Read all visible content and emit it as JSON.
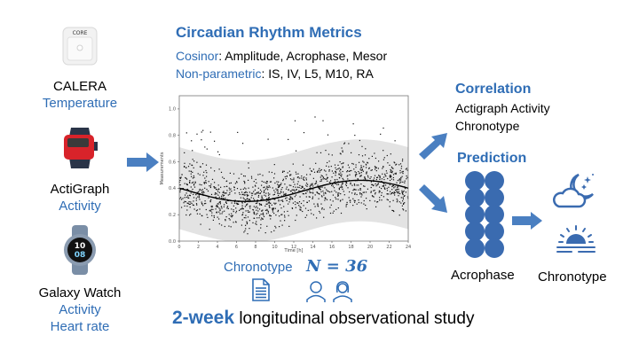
{
  "devices": [
    {
      "name": "CALERA",
      "measures": [
        "Temperature"
      ],
      "icon": "core-sensor-icon",
      "icon_text": "CORE"
    },
    {
      "name": "ActiGraph",
      "measures": [
        "Activity"
      ],
      "icon": "actigraph-watch-icon"
    },
    {
      "name": "Galaxy Watch",
      "measures": [
        "Activity",
        "Heart rate"
      ],
      "icon": "galaxy-watch-icon",
      "watch_hour": "10",
      "watch_min": "08"
    }
  ],
  "metrics": {
    "title": "Circadian Rhythm Metrics",
    "cosinor_label": "Cosinor",
    "cosinor_items": ": Amplitude, Acrophase, Mesor",
    "nonparam_label": "Non-parametric",
    "nonparam_items": ": IS, IV, L5, M10, RA"
  },
  "study": {
    "chronotype_label": "Chronotype",
    "n_label": "N = 36",
    "duration": "2-week",
    "description": " longitudinal observational study"
  },
  "correlation": {
    "title": "Correlation",
    "items": [
      "Actigraph Activity",
      "Chronotype"
    ]
  },
  "prediction": {
    "title": "Prediction",
    "input_label": "Acrophase",
    "output_label": "Chronotype"
  },
  "colors": {
    "accent": "#2f6db5",
    "arrow": "#4a7fc1",
    "band": "#e3e3e3"
  },
  "chart_data": {
    "type": "scatter",
    "title": "",
    "xlabel": "Time [h]",
    "ylabel": "Measurements",
    "xlim": [
      0,
      24
    ],
    "ylim": [
      0,
      1.1
    ],
    "xticks": [
      0,
      2,
      4,
      6,
      8,
      10,
      12,
      14,
      16,
      18,
      20,
      22,
      24
    ],
    "yticks": [
      "0.0",
      "0.2",
      "0.4",
      "0.6",
      "0.8",
      "1.0"
    ],
    "cosinor_fit": {
      "mesor": 0.38,
      "amplitude": 0.08,
      "acrophase_h": 19,
      "period_h": 24
    },
    "band_halfwidth": 0.31,
    "series": [
      {
        "name": "Measurements",
        "n_points": 1400,
        "range": [
          0.0,
          1.0
        ]
      }
    ]
  }
}
